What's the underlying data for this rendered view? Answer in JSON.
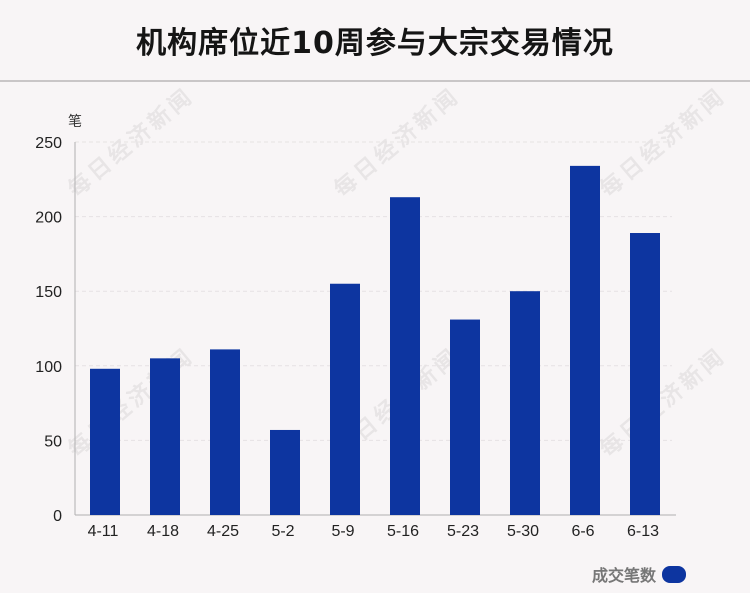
{
  "title": "机构席位近10周参与大宗交易情况",
  "watermark_text": "每日经济新闻",
  "colors": {
    "bar": "#0d35a0",
    "background": "#f8f5f6",
    "grid": "#e6e2e3",
    "axis": "#b0b0b0"
  },
  "legend": {
    "label": "成交笔数"
  },
  "chart_data": {
    "type": "bar",
    "title": "机构席位近10周参与大宗交易情况",
    "xlabel": "",
    "ylabel": "笔",
    "categories": [
      "4-11",
      "4-18",
      "4-25",
      "5-2",
      "5-9",
      "5-16",
      "5-23",
      "5-30",
      "6-6",
      "6-13"
    ],
    "series": [
      {
        "name": "成交笔数",
        "values": [
          98,
          105,
          111,
          57,
          155,
          213,
          131,
          150,
          234,
          189
        ]
      }
    ],
    "ylim": [
      0,
      250
    ],
    "yticks": [
      0,
      50,
      100,
      150,
      200,
      250
    ],
    "grid": true,
    "legend_position": "bottom-right"
  }
}
